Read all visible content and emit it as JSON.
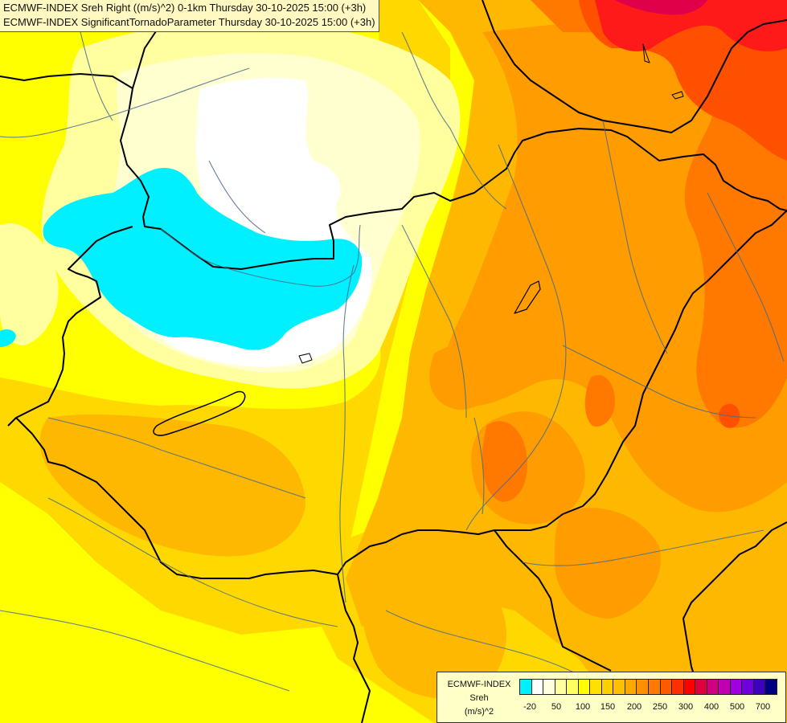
{
  "header": {
    "line1": "ECMWF-INDEX Sreh Right ((m/s)^2) 0-1km Thursday 30-10-2025 15:00 (+3h)",
    "line2": "ECMWF-INDEX SignificantTornadoParameter Thursday 30-10-2025 15:00 (+3h)"
  },
  "map": {
    "fill_colors": {
      "base_yellow": "#ffff00",
      "gold": "#ffd800",
      "orange_light": "#ffb800",
      "orange": "#ff9c00",
      "orange_dark": "#ff7800",
      "red_orange": "#ff5000",
      "red": "#ff1a1a",
      "crimson": "#e0004a",
      "pale_yellow": "#ffffa0",
      "cream": "#ffffd0",
      "white": "#ffffff",
      "cyan": "#00f0ff"
    },
    "border_color": "#000000",
    "river_color": "#4a6b8c"
  },
  "legend": {
    "title_lines": [
      "ECMWF-INDEX",
      "Sreh",
      "(m/s)^2"
    ],
    "tick_labels": [
      "-20",
      "50",
      "100",
      "150",
      "200",
      "250",
      "300",
      "400",
      "500",
      "700"
    ],
    "colors": [
      "#00f0ff",
      "#ffffff",
      "#ffffe0",
      "#ffffa0",
      "#ffff60",
      "#ffff00",
      "#ffe000",
      "#ffd000",
      "#ffc000",
      "#ffa800",
      "#ff9000",
      "#ff7800",
      "#ff5a00",
      "#ff3000",
      "#ff0000",
      "#e00040",
      "#d00080",
      "#c000b0",
      "#a000e0",
      "#7000e0",
      "#4000c0",
      "#000080"
    ]
  }
}
